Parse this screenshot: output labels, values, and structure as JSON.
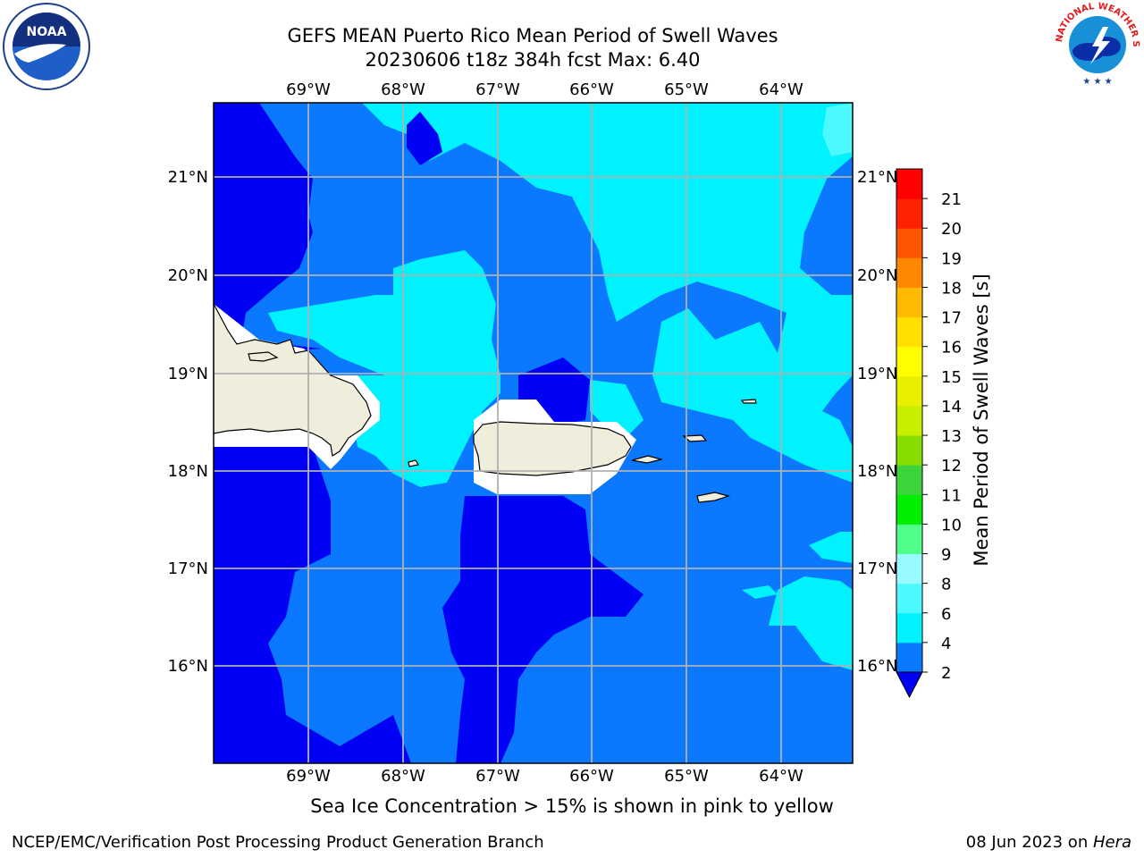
{
  "header": {
    "title_line1": "GEFS MEAN Puerto Rico Mean Period of Swell Waves",
    "title_line2": "20230606 t18z 384h fcst   Max: 6.40"
  },
  "logos": {
    "noaa_text": "NOAA",
    "nws_text": "NATIONAL WEATHER SERVICE"
  },
  "map": {
    "lon_labels": [
      "69°W",
      "68°W",
      "67°W",
      "66°W",
      "65°W",
      "64°W"
    ],
    "lat_labels": [
      "21°N",
      "20°N",
      "19°N",
      "18°N",
      "17°N",
      "16°N"
    ],
    "colors": {
      "land": "#efeedd",
      "ocean_deep": "#0000f5",
      "ocean_mid": "#0a78ff",
      "ocean_light": "#00f2ff",
      "ocean_pale": "#4cf9ff",
      "white_mask": "#ffffff",
      "grid": "#b0b0b0"
    }
  },
  "colorbar": {
    "label": "Mean Period of Swell Waves [s]",
    "ticks": [
      "2",
      "4",
      "6",
      "8",
      "9",
      "10",
      "11",
      "12",
      "13",
      "14",
      "15",
      "16",
      "17",
      "18",
      "19",
      "20",
      "21"
    ],
    "colors": [
      "#0a78ff",
      "#00f2ff",
      "#4cf9ff",
      "#99fbff",
      "#4fff8a",
      "#00ee00",
      "#3dd33d",
      "#88dd00",
      "#c8ee00",
      "#e8f000",
      "#ffff00",
      "#ffe000",
      "#ffbb00",
      "#ff8800",
      "#ff5500",
      "#ff2200",
      "#ff0000"
    ],
    "under_color": "#0000f5"
  },
  "caption": "Sea Ice Concentration > 15% is shown in pink to yellow",
  "footer": {
    "left": "NCEP/EMC/Verification Post Processing Product Generation Branch",
    "right_prefix": "08 Jun 2023 on ",
    "right_italic": "Hera"
  }
}
